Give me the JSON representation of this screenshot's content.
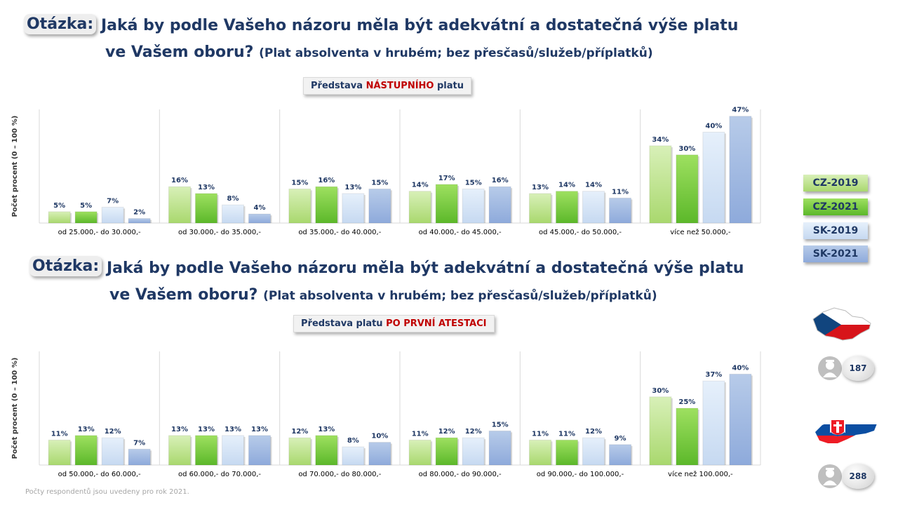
{
  "question_label": "Otázka:",
  "question_text": "Jaká by podle Vašeho názoru měla být adekvátní a dostatečná výše platu",
  "question_text2": "ve Vašem oboru?",
  "question_note": "(Plat absolventa v hrubém; bez přesčasů/služeb/příplatků)",
  "chart1_subtitle_pre": "Představa ",
  "chart1_subtitle_hl": "NÁSTUPNÍHO",
  "chart1_subtitle_post": " platu",
  "chart2_subtitle_pre": "Představa platu ",
  "chart2_subtitle_hl": "PO PRVNÍ ATESTACI",
  "legend": [
    {
      "label": "CZ-2019",
      "color": "#a9d86e"
    },
    {
      "label": "CZ-2021",
      "color": "#6cc433"
    },
    {
      "label": "SK-2019",
      "color": "#c6d9f1"
    },
    {
      "label": "SK-2021",
      "color": "#8eaadb"
    }
  ],
  "counts": {
    "cz": "187",
    "sk": "288"
  },
  "footnote": "Počty respondentů jsou uvedeny pro rok 2021.",
  "chart_data": [
    {
      "type": "bar",
      "title": "Představa NÁSTUPNÍHO platu",
      "ylabel": "Počet procent  (0 – 100 %)",
      "ylim": [
        0,
        50
      ],
      "categories": [
        "od 25.000,- do 30.000,-",
        "od 30.000,- do 35.000,-",
        "od 35.000,- do 40.000,-",
        "od 40.000,- do 45.000,-",
        "od 45.000,- do 50.000,-",
        "více než 50.000,-"
      ],
      "series": [
        {
          "name": "CZ-2019",
          "values": [
            5,
            16,
            15,
            14,
            13,
            34
          ]
        },
        {
          "name": "CZ-2021",
          "values": [
            5,
            13,
            16,
            17,
            14,
            30
          ]
        },
        {
          "name": "SK-2019",
          "values": [
            7,
            8,
            13,
            15,
            14,
            40
          ]
        },
        {
          "name": "SK-2021",
          "values": [
            2,
            4,
            15,
            16,
            11,
            47
          ]
        }
      ]
    },
    {
      "type": "bar",
      "title": "Představa platu PO PRVNÍ ATESTACI",
      "ylabel": "Počet procent  (0 – 100 %)",
      "ylim": [
        0,
        50
      ],
      "categories": [
        "od 50.000,- do 60.000,-",
        "od 60.000,- do 70.000,-",
        "od 70.000,- do 80.000,-",
        "od 80.000,- do 90.000,-",
        "od 90.000,- do 100.000,-",
        "více než 100.000,-"
      ],
      "series": [
        {
          "name": "CZ-2019",
          "values": [
            11,
            13,
            12,
            11,
            11,
            30
          ]
        },
        {
          "name": "CZ-2021",
          "values": [
            13,
            13,
            13,
            12,
            11,
            25
          ]
        },
        {
          "name": "SK-2019",
          "values": [
            12,
            13,
            8,
            12,
            12,
            37
          ]
        },
        {
          "name": "SK-2021",
          "values": [
            7,
            13,
            10,
            15,
            9,
            40
          ]
        }
      ]
    }
  ]
}
